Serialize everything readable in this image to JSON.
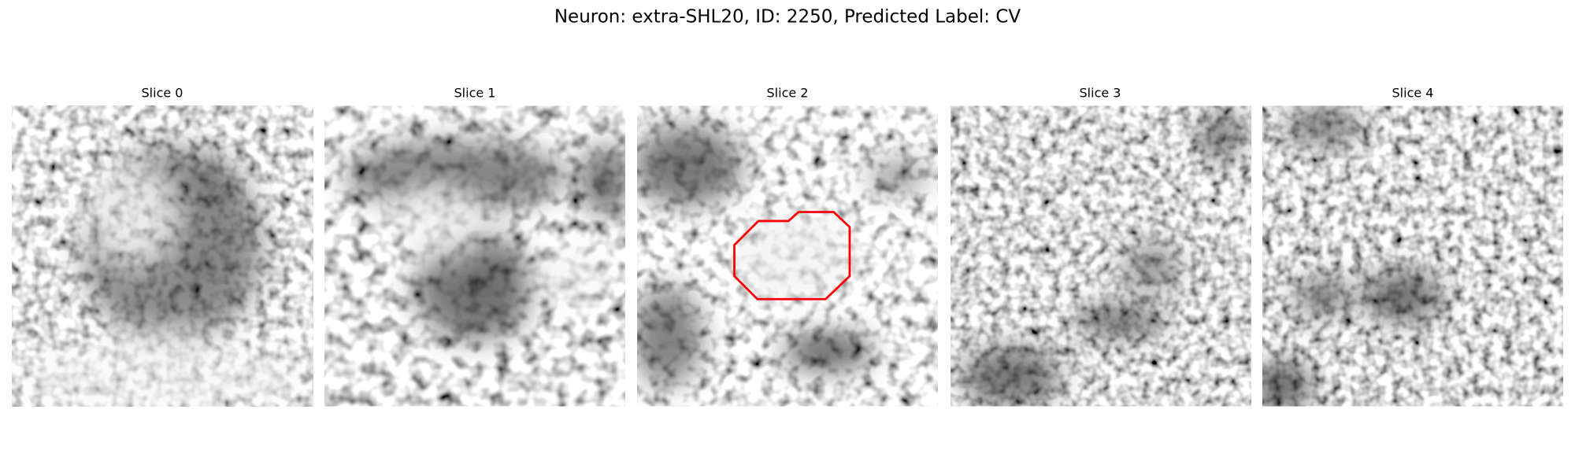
{
  "title": "Neuron: extra-SHL20, ID: 2250, Predicted Label: CV",
  "panels": [
    {
      "title": "Slice 0"
    },
    {
      "title": "Slice 1"
    },
    {
      "title": "Slice 2"
    },
    {
      "title": "Slice 3"
    },
    {
      "title": "Slice 4"
    }
  ]
}
